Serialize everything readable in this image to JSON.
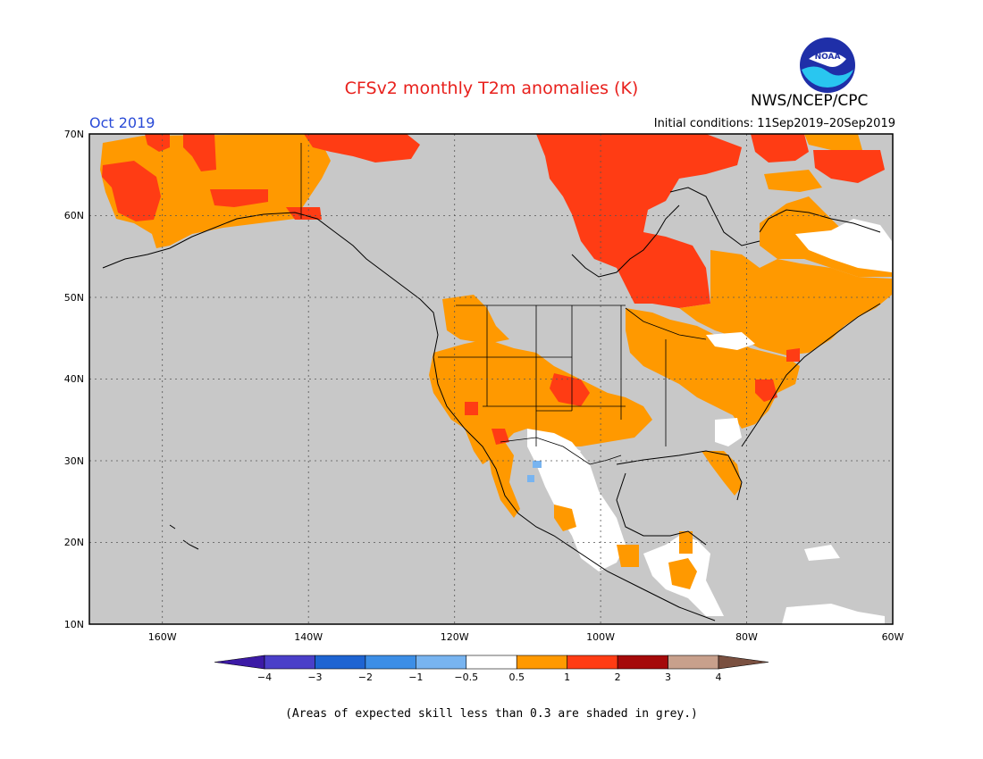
{
  "title": "CFSv2 monthly T2m anomalies (K)",
  "organization": "NWS/NCEP/CPC",
  "logo": {
    "name": "noaa-logo",
    "text": "NOAA"
  },
  "period": "Oct 2019",
  "initial_conditions": "Initial conditions: 11Sep2019–20Sep2019",
  "footnote": "(Areas of expected skill less than 0.3 are shaded in grey.)",
  "map": {
    "lon_range": [
      -170,
      -60
    ],
    "lat_range": [
      10,
      70
    ],
    "lat_labels": [
      "70N",
      "60N",
      "50N",
      "40N",
      "30N",
      "20N",
      "10N"
    ],
    "lon_labels": [
      "160W",
      "140W",
      "120W",
      "100W",
      "80W",
      "60W"
    ],
    "background_color": "#c8c8c8",
    "grid": "dotted"
  },
  "colorbar": {
    "labels": [
      "−4",
      "−3",
      "−2",
      "−1",
      "−0.5",
      "0.5",
      "1",
      "2",
      "3",
      "4"
    ],
    "colors": [
      "#3c1aa6",
      "#4a3fc9",
      "#1e64d2",
      "#3c8ee6",
      "#78b4f0",
      "#ffffff",
      "#ff9900",
      "#ff3c14",
      "#a50a0a",
      "#c8a08c",
      "#7a5040"
    ]
  }
}
